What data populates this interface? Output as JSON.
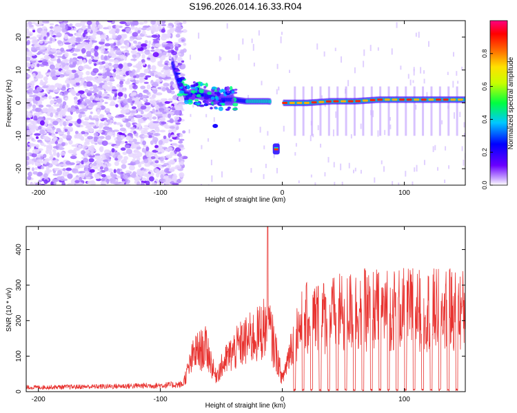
{
  "title": "S196.2026.014.16.33.R04",
  "colors": {
    "snr_line": "#e8322f",
    "ridge_core": "#ff2200",
    "ridge_mid": "#00e6a0",
    "ridge_edge": "#2200ff",
    "noise": "#7a2bff"
  },
  "chart_data": [
    {
      "type": "heatmap",
      "title": "S196.2026.014.16.33.R04",
      "xlabel": "Height of straight line (km)",
      "ylabel": "Frequency (Hz)",
      "xlim": [
        -210,
        150
      ],
      "ylim": [
        -25,
        25
      ],
      "xticks": [
        -200,
        -100,
        0,
        100
      ],
      "yticks": [
        -20,
        -10,
        0,
        10,
        20
      ],
      "xtick_labels": [
        "-200",
        "-100",
        "0",
        "100"
      ],
      "ytick_labels": [
        "-20",
        "-10",
        "0",
        "10",
        "20"
      ],
      "noise_region": [
        -210,
        -80
      ],
      "ridge": [
        {
          "x": -90,
          "y": 12
        },
        {
          "x": -85,
          "y": 6
        },
        {
          "x": -78,
          "y": 2
        },
        {
          "x": -70,
          "y": 3
        },
        {
          "x": -60,
          "y": 2
        },
        {
          "x": -50,
          "y": 1
        },
        {
          "x": -40,
          "y": 1
        },
        {
          "x": -30,
          "y": 0.5
        },
        {
          "x": -20,
          "y": 0.5
        },
        {
          "x": -12,
          "y": 0.5
        },
        {
          "x": 2,
          "y": 0
        },
        {
          "x": 20,
          "y": 0
        },
        {
          "x": 40,
          "y": 0.5
        },
        {
          "x": 60,
          "y": 0.5
        },
        {
          "x": 80,
          "y": 1
        },
        {
          "x": 100,
          "y": 1
        },
        {
          "x": 120,
          "y": 1
        },
        {
          "x": 140,
          "y": 1
        },
        {
          "x": 150,
          "y": 1
        }
      ],
      "side_features": [
        {
          "x": -55,
          "y": -7,
          "label": "low branch"
        },
        {
          "x": -5,
          "y": -14,
          "label": "drop"
        }
      ],
      "colorbar": {
        "label": "Normalized spectral amplitude",
        "range": [
          0,
          1
        ],
        "ticks": [
          0.0,
          0.2,
          0.4,
          0.6,
          0.8
        ],
        "tick_labels": [
          "0.0",
          "0.2",
          "0.4",
          "0.6",
          "0.8"
        ],
        "stops": [
          "#ffffff",
          "#6a00ff",
          "#0000ff",
          "#00c8ff",
          "#00ff40",
          "#ffff00",
          "#ff6a00",
          "#ff0000",
          "#ff0080"
        ]
      }
    },
    {
      "type": "line",
      "xlabel": "Height of straight line (km)",
      "ylabel": "SNR (10 * v/v)",
      "xlim": [
        -210,
        150
      ],
      "ylim": [
        0,
        465
      ],
      "xticks": [
        -200,
        -100,
        0,
        100
      ],
      "yticks": [
        0,
        100,
        200,
        300,
        400
      ],
      "xtick_labels": [
        "-200",
        "-100",
        "0",
        "100"
      ],
      "ytick_labels": [
        "0",
        "100",
        "200",
        "300",
        "400"
      ],
      "envelope": [
        {
          "x": -210,
          "y": 15
        },
        {
          "x": -150,
          "y": 18
        },
        {
          "x": -100,
          "y": 22
        },
        {
          "x": -82,
          "y": 25
        },
        {
          "x": -72,
          "y": 150
        },
        {
          "x": -62,
          "y": 170
        },
        {
          "x": -55,
          "y": 60
        },
        {
          "x": -45,
          "y": 130
        },
        {
          "x": -35,
          "y": 180
        },
        {
          "x": -28,
          "y": 200
        },
        {
          "x": -20,
          "y": 220
        },
        {
          "x": -12,
          "y": 265
        },
        {
          "x": -5,
          "y": 150
        },
        {
          "x": 0,
          "y": 45
        },
        {
          "x": 10,
          "y": 230
        },
        {
          "x": 20,
          "y": 280
        },
        {
          "x": 40,
          "y": 295
        },
        {
          "x": 60,
          "y": 315
        },
        {
          "x": 100,
          "y": 320
        },
        {
          "x": 150,
          "y": 315
        }
      ],
      "spike": {
        "x": -12,
        "y": 465
      },
      "dropouts_x": [
        10,
        17,
        24,
        31,
        38,
        45,
        52,
        59,
        66,
        73,
        80,
        87,
        94,
        101,
        108,
        115,
        122,
        129,
        136,
        143
      ],
      "sample_step_km": 0.25
    }
  ]
}
